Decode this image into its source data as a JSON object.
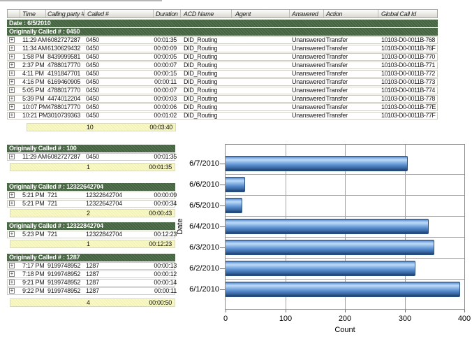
{
  "report": {
    "expand_glyph": "+",
    "columns": [
      "",
      "Time",
      "Calling party #",
      "Called #",
      "Duration",
      "ACD Name",
      "Agent",
      "Answered",
      "Action",
      "Global Call Id"
    ],
    "date_label": "Date : 6/5/2010",
    "sections": [
      {
        "title": "Originally Called # : 0450",
        "rows": [
          {
            "time": "11:29 AM",
            "calling_party": "6082727287",
            "called": "0450",
            "duration": "00:01:35",
            "acd_name": "DID_Routing",
            "agent": "",
            "answered": "Unanswered",
            "action": "Transfer",
            "global_call_id": "10103-D0-0011B-768"
          },
          {
            "time": "11:34 AM",
            "calling_party": "6130629432",
            "called": "0450",
            "duration": "00:00:09",
            "acd_name": "DID_Routing",
            "agent": "",
            "answered": "Unanswered",
            "action": "Transfer",
            "global_call_id": "10103-D0-0011B-76F"
          },
          {
            "time": "1:58 PM",
            "calling_party": "8439999581",
            "called": "0450",
            "duration": "00:00:05",
            "acd_name": "DID_Routing",
            "agent": "",
            "answered": "Unanswered",
            "action": "Transfer",
            "global_call_id": "10103-D0-0011B-770"
          },
          {
            "time": "2:37 PM",
            "calling_party": "4788017770",
            "called": "0450",
            "duration": "00:00:07",
            "acd_name": "DID_Routing",
            "agent": "",
            "answered": "Unanswered",
            "action": "Transfer",
            "global_call_id": "10103-D0-0011B-771"
          },
          {
            "time": "4:11 PM",
            "calling_party": "4191847701",
            "called": "0450",
            "duration": "00:00:15",
            "acd_name": "DID_Routing",
            "agent": "",
            "answered": "Unanswered",
            "action": "Transfer",
            "global_call_id": "10103-D0-0011B-772"
          },
          {
            "time": "4:16 PM",
            "calling_party": "6169460905",
            "called": "0450",
            "duration": "00:00:11",
            "acd_name": "DID_Routing",
            "agent": "",
            "answered": "Unanswered",
            "action": "Transfer",
            "global_call_id": "10103-D0-0011B-773"
          },
          {
            "time": "5:05 PM",
            "calling_party": "4788017770",
            "called": "0450",
            "duration": "00:00:07",
            "acd_name": "DID_Routing",
            "agent": "",
            "answered": "Unanswered",
            "action": "Transfer",
            "global_call_id": "10103-D0-0011B-774"
          },
          {
            "time": "5:39 PM",
            "calling_party": "4474012204",
            "called": "0450",
            "duration": "00:00:03",
            "acd_name": "DID_Routing",
            "agent": "",
            "answered": "Unanswered",
            "action": "Transfer",
            "global_call_id": "10103-D0-0011B-778"
          },
          {
            "time": "10:07 PM",
            "calling_party": "4788017770",
            "called": "0450",
            "duration": "00:00:06",
            "acd_name": "DID_Routing",
            "agent": "",
            "answered": "Unanswered",
            "action": "Transfer",
            "global_call_id": "10103-D0-0011B-77E"
          },
          {
            "time": "10:21 PM",
            "calling_party": "3010739363",
            "called": "0450",
            "duration": "00:01:02",
            "acd_name": "DID_Routing",
            "agent": "",
            "answered": "Unanswered",
            "action": "Transfer",
            "global_call_id": "10103-D0-0011B-77F"
          }
        ],
        "summary": {
          "count": "10",
          "duration": "00:03:40"
        }
      },
      {
        "title": "Originally Called # : 100",
        "rows": [
          {
            "time": "11:29 AM",
            "calling_party": "6082727287",
            "called": "0450",
            "duration": "00:01:35"
          }
        ],
        "summary": {
          "count": "1",
          "duration": "00:01:35"
        }
      },
      {
        "title": "Originally Called # : 12322642704",
        "rows": [
          {
            "time": "5:21 PM",
            "calling_party": "721",
            "called": "12322642704",
            "duration": "00:00:09"
          },
          {
            "time": "5:21 PM",
            "calling_party": "721",
            "called": "12322642704",
            "duration": "00:00:34"
          }
        ],
        "summary": {
          "count": "2",
          "duration": "00:00:43"
        }
      },
      {
        "title": "Originally Called # : 12322842704",
        "rows": [
          {
            "time": "5:23 PM",
            "calling_party": "721",
            "called": "12322842704",
            "duration": "00:12:23"
          }
        ],
        "summary": {
          "count": "1",
          "duration": "00:12:23"
        }
      },
      {
        "title": "Originally Called # : 1287",
        "rows": [
          {
            "time": "7:17 PM",
            "calling_party": "9199748952",
            "called": "1287",
            "duration": "00:00:13"
          },
          {
            "time": "7:18 PM",
            "calling_party": "9199748952",
            "called": "1287",
            "duration": "00:00:12"
          },
          {
            "time": "9:21 PM",
            "calling_party": "9199748952",
            "called": "1287",
            "duration": "00:00:14"
          },
          {
            "time": "9:22 PM",
            "calling_party": "9199748952",
            "called": "1287",
            "duration": "00:00:11"
          }
        ],
        "summary": {
          "count": "4",
          "duration": "00:00:50"
        }
      }
    ]
  },
  "chart_data": {
    "type": "bar",
    "orientation": "horizontal",
    "categories": [
      "6/7/2010",
      "6/6/2010",
      "6/5/2010",
      "6/4/2010",
      "6/3/2010",
      "6/2/2010",
      "6/1/2010"
    ],
    "values": [
      305,
      33,
      28,
      340,
      350,
      318,
      393
    ],
    "title": "",
    "xlabel": "Count",
    "ylabel": "Date",
    "xlim": [
      0,
      400
    ],
    "xticks": [
      0,
      100,
      200,
      300,
      400
    ],
    "grid": true,
    "legend": false,
    "bar_color": "#5b8fd0"
  }
}
